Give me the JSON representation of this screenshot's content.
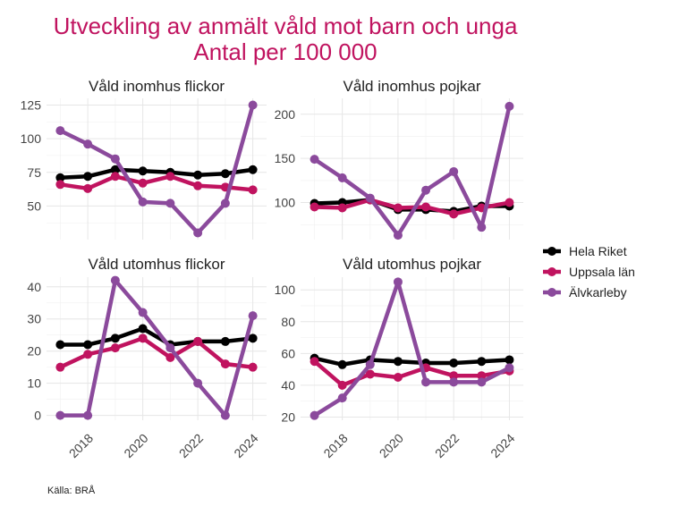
{
  "chart_data": {
    "type": "line",
    "title_line1": "Utveckling av anmält våld mot barn och unga",
    "title_line2": "Antal per 100 000",
    "caption": "Källa: BRÅ",
    "x": [
      2017,
      2018,
      2019,
      2020,
      2021,
      2022,
      2023,
      2024
    ],
    "x_ticks": [
      2018,
      2020,
      2022,
      2024
    ],
    "series_names": [
      "Hela Riket",
      "Uppsala län",
      "Älvkarleby"
    ],
    "colors": {
      "Hela Riket": "#000000",
      "Uppsala län": "#c0135f",
      "Älvkarleby": "#8b4a9c"
    },
    "legend_position": "right",
    "facets": [
      {
        "title": "Våld inomhus flickor",
        "ylim": [
          25,
          130
        ],
        "yticks": [
          50,
          75,
          100,
          125
        ],
        "series": [
          {
            "name": "Hela Riket",
            "values": [
              71,
              72,
              77,
              76,
              75,
              73,
              74,
              77
            ]
          },
          {
            "name": "Uppsala län",
            "values": [
              66,
              63,
              72,
              67,
              72,
              65,
              64,
              62
            ]
          },
          {
            "name": "Älvkarleby",
            "values": [
              106,
              96,
              85,
              53,
              52,
              30,
              52,
              125
            ]
          }
        ]
      },
      {
        "title": "Våld inomhus pojkar",
        "ylim": [
          58,
          218
        ],
        "yticks": [
          100,
          150,
          200
        ],
        "series": [
          {
            "name": "Hela Riket",
            "values": [
              99,
              100,
              103,
              92,
              92,
              90,
              96,
              96
            ]
          },
          {
            "name": "Uppsala län",
            "values": [
              95,
              94,
              103,
              94,
              95,
              87,
              94,
              100
            ]
          },
          {
            "name": "Älvkarleby",
            "values": [
              149,
              128,
              105,
              63,
              114,
              135,
              72,
              209
            ]
          }
        ]
      },
      {
        "title": "Våld utomhus flickor",
        "ylim": [
          -1.5,
          43
        ],
        "yticks": [
          0,
          10,
          20,
          30,
          40
        ],
        "series": [
          {
            "name": "Hela Riket",
            "values": [
              22,
              22,
              24,
              27,
              22,
              23,
              23,
              24
            ]
          },
          {
            "name": "Uppsala län",
            "values": [
              15,
              19,
              21,
              24,
              18,
              23,
              16,
              15
            ]
          },
          {
            "name": "Älvkarleby",
            "values": [
              0,
              0,
              42,
              32,
              21,
              10,
              0,
              31
            ]
          }
        ]
      },
      {
        "title": "Våld utomhus pojkar",
        "ylim": [
          18,
          108
        ],
        "yticks": [
          20,
          40,
          60,
          80,
          100
        ],
        "series": [
          {
            "name": "Hela Riket",
            "values": [
              57,
              53,
              56,
              55,
              54,
              54,
              55,
              56
            ]
          },
          {
            "name": "Uppsala län",
            "values": [
              55,
              40,
              47,
              45,
              51,
              46,
              46,
              49
            ]
          },
          {
            "name": "Älvkarleby",
            "values": [
              21,
              32,
              53,
              105,
              42,
              42,
              42,
              51
            ]
          }
        ]
      }
    ]
  }
}
